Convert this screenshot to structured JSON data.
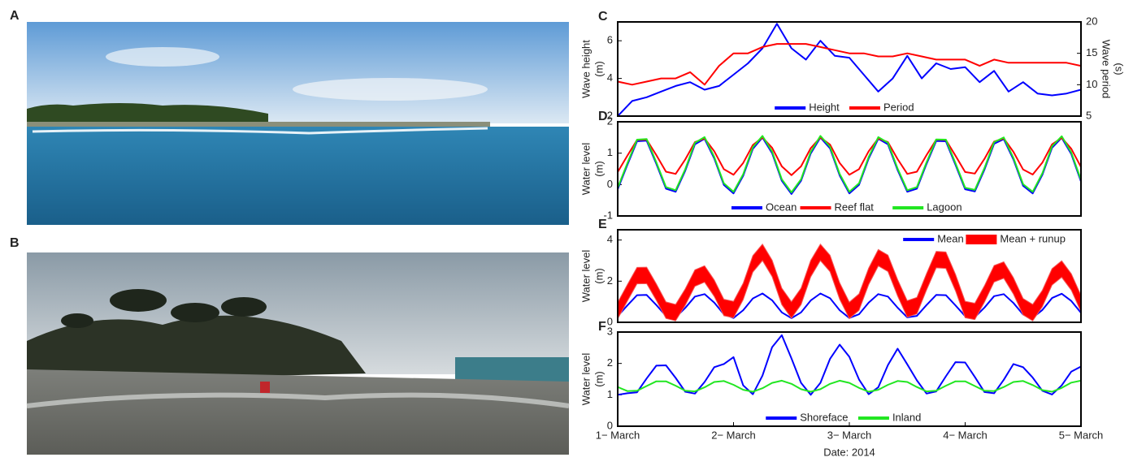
{
  "photos": [
    {
      "label": "A"
    },
    {
      "label": "B"
    }
  ],
  "chart_data": [
    {
      "type": "line",
      "label": "C",
      "ylabel": [
        "Wave height",
        "(m)"
      ],
      "y2label": [
        "Wave period",
        "(s)"
      ],
      "ylim": [
        2,
        7
      ],
      "yticks": [
        2,
        4,
        6
      ],
      "y2lim": [
        5,
        20
      ],
      "y2ticks": [
        5,
        10,
        15,
        20
      ],
      "xlim": [
        0,
        96
      ],
      "x": [
        0,
        3,
        6,
        9,
        12,
        15,
        18,
        21,
        24,
        27,
        30,
        33,
        36,
        39,
        42,
        45,
        48,
        51,
        54,
        57,
        60,
        63,
        66,
        69,
        72,
        75,
        78,
        81,
        84,
        87,
        90,
        93,
        96
      ],
      "legend": "lower center",
      "series": [
        {
          "name": "Height",
          "color": "#0000ff",
          "values": [
            2.0,
            2.8,
            3.0,
            3.3,
            3.6,
            3.8,
            3.4,
            3.6,
            4.2,
            4.8,
            5.6,
            6.9,
            5.6,
            5.0,
            6.0,
            5.2,
            5.1,
            4.2,
            3.3,
            4.0,
            5.2,
            4.0,
            4.8,
            4.5,
            4.6,
            3.8,
            4.4,
            3.3,
            3.8,
            3.2,
            3.1,
            3.2,
            3.4
          ]
        },
        {
          "name": "Period",
          "color": "#ff0000",
          "axis": "y2",
          "values": [
            10.5,
            10,
            10.5,
            11,
            11,
            12,
            10,
            13,
            15,
            15,
            16,
            16.5,
            16.5,
            16.5,
            16,
            15.5,
            15,
            15,
            14.5,
            14.5,
            15,
            14.5,
            14,
            14,
            14,
            13,
            14,
            13.5,
            13.5,
            13.5,
            13.5,
            13.5,
            13
          ]
        }
      ]
    },
    {
      "type": "line",
      "label": "D",
      "ylabel": [
        "Water level",
        "(m)"
      ],
      "ylim": [
        -1,
        2
      ],
      "yticks": [
        -1,
        0,
        1,
        2
      ],
      "xlim": [
        0,
        96
      ],
      "x": [
        0,
        2,
        4,
        6,
        8,
        10,
        12,
        14,
        16,
        18,
        20,
        22,
        24,
        26,
        28,
        30,
        32,
        34,
        36,
        38,
        40,
        42,
        44,
        46,
        48,
        50,
        52,
        54,
        56,
        58,
        60,
        62,
        64,
        66,
        68,
        70,
        72,
        74,
        76,
        78,
        80,
        82,
        84,
        86,
        88,
        90,
        92,
        94,
        96
      ],
      "legend": "lower center",
      "series": [
        {
          "name": "Ocean",
          "color": "#0000ff",
          "values": [
            -0.15,
            0.63,
            1.38,
            1.4,
            0.66,
            -0.13,
            -0.23,
            0.44,
            1.28,
            1.46,
            0.83,
            -0.01,
            -0.28,
            0.28,
            1.14,
            1.5,
            1.0,
            0.12,
            -0.3,
            0.12,
            0.99,
            1.5,
            1.15,
            0.29,
            -0.28,
            -0.01,
            0.83,
            1.46,
            1.28,
            0.46,
            -0.23,
            -0.13,
            0.66,
            1.39,
            1.38,
            0.63,
            -0.15,
            -0.22,
            0.48,
            1.3,
            1.45,
            0.8,
            -0.04,
            -0.28,
            0.31,
            1.17,
            1.49,
            0.97,
            0.1
          ]
        },
        {
          "name": "Reef flat",
          "color": "#ff0000",
          "values": [
            0.4,
            0.92,
            1.42,
            1.43,
            0.94,
            0.41,
            0.34,
            0.8,
            1.35,
            1.47,
            1.06,
            0.49,
            0.31,
            0.69,
            1.26,
            1.5,
            1.17,
            0.58,
            0.3,
            0.58,
            1.16,
            1.5,
            1.27,
            0.69,
            0.31,
            0.49,
            1.06,
            1.47,
            1.35,
            0.81,
            0.34,
            0.41,
            0.94,
            1.43,
            1.42,
            0.92,
            0.4,
            0.35,
            0.82,
            1.37,
            1.47,
            1.04,
            0.48,
            0.32,
            0.7,
            1.28,
            1.49,
            1.14,
            0.56
          ]
        },
        {
          "name": "Lagoon",
          "color": "#22e622",
          "values": [
            -0.1,
            0.68,
            1.43,
            1.45,
            0.71,
            -0.08,
            -0.18,
            0.49,
            1.33,
            1.51,
            0.88,
            0.04,
            -0.23,
            0.33,
            1.19,
            1.55,
            1.05,
            0.17,
            -0.25,
            0.17,
            1.04,
            1.55,
            1.2,
            0.34,
            -0.23,
            0.04,
            0.88,
            1.51,
            1.33,
            0.51,
            -0.18,
            -0.08,
            0.71,
            1.44,
            1.43,
            0.68,
            -0.1,
            -0.17,
            0.53,
            1.35,
            1.5,
            0.85,
            0.01,
            -0.23,
            0.36,
            1.22,
            1.54,
            1.02,
            0.15
          ]
        }
      ]
    },
    {
      "type": "line",
      "label": "E",
      "ylabel": [
        "Water level",
        "(m)"
      ],
      "ylim": [
        0,
        4.5
      ],
      "yticks": [
        0,
        2,
        4
      ],
      "xlim": [
        0,
        96
      ],
      "x": [
        0,
        2,
        4,
        6,
        8,
        10,
        12,
        14,
        16,
        18,
        20,
        22,
        24,
        26,
        28,
        30,
        32,
        34,
        36,
        38,
        40,
        42,
        44,
        46,
        48,
        50,
        52,
        54,
        56,
        58,
        60,
        62,
        64,
        66,
        68,
        70,
        72,
        74,
        76,
        78,
        80,
        82,
        84,
        86,
        88,
        90,
        92,
        94,
        96
      ],
      "legend": "upper right",
      "series": [
        {
          "name": "Mean",
          "color": "#0000ff",
          "values": [
            0.3,
            0.82,
            1.32,
            1.33,
            0.84,
            0.31,
            0.24,
            0.7,
            1.25,
            1.37,
            0.96,
            0.39,
            0.21,
            0.59,
            1.16,
            1.4,
            1.07,
            0.48,
            0.2,
            0.48,
            1.06,
            1.4,
            1.17,
            0.59,
            0.21,
            0.39,
            0.96,
            1.37,
            1.25,
            0.71,
            0.24,
            0.31,
            0.84,
            1.33,
            1.32,
            0.82,
            0.3,
            0.25,
            0.72,
            1.27,
            1.37,
            0.94,
            0.38,
            0.22,
            0.6,
            1.18,
            1.39,
            1.04,
            0.46
          ]
        },
        {
          "name": "Mean + runup",
          "color": "#ff0000",
          "band": true,
          "values": [
            0.97,
            1.83,
            2.67,
            2.68,
            1.87,
            0.99,
            0.87,
            1.63,
            2.55,
            2.75,
            2.06,
            1.12,
            1.02,
            1.9,
            3.24,
            3.8,
            3.02,
            1.66,
            1.0,
            1.66,
            3.01,
            3.8,
            3.26,
            1.92,
            0.98,
            1.38,
            2.63,
            3.54,
            3.27,
            2.08,
            1.05,
            1.21,
            2.37,
            3.45,
            3.42,
            2.33,
            1.02,
            0.93,
            1.78,
            2.76,
            2.94,
            2.17,
            1.16,
            0.87,
            1.56,
            2.61,
            2.99,
            2.36,
            1.31
          ],
          "lower": [
            0.17,
            1.03,
            1.87,
            1.88,
            1.07,
            0.19,
            0.07,
            0.83,
            1.75,
            1.95,
            1.26,
            0.32,
            0.22,
            1.1,
            2.44,
            3.0,
            2.22,
            0.86,
            0.2,
            0.86,
            2.21,
            3.0,
            2.46,
            1.12,
            0.18,
            0.58,
            1.83,
            2.74,
            2.47,
            1.28,
            0.25,
            0.41,
            1.57,
            2.65,
            2.62,
            1.53,
            0.22,
            0.13,
            0.98,
            1.96,
            2.14,
            1.37,
            0.36,
            0.07,
            0.76,
            1.81,
            2.19,
            1.56,
            0.51
          ]
        }
      ]
    },
    {
      "type": "line",
      "label": "F",
      "ylabel": [
        "Water level",
        "(m)"
      ],
      "xlabel": "Date: 2014",
      "ylim": [
        0,
        3
      ],
      "yticks": [
        0,
        1,
        2,
        3
      ],
      "xlim": [
        0,
        96
      ],
      "xticks": [
        {
          "value": 0,
          "label": "1− March"
        },
        {
          "value": 24,
          "label": "2− March"
        },
        {
          "value": 48,
          "label": "3− March"
        },
        {
          "value": 72,
          "label": "4− March"
        },
        {
          "value": 96,
          "label": "5− March"
        }
      ],
      "x": [
        0,
        2,
        4,
        6,
        8,
        10,
        12,
        14,
        16,
        18,
        20,
        22,
        24,
        26,
        28,
        30,
        32,
        34,
        36,
        38,
        40,
        42,
        44,
        46,
        48,
        50,
        52,
        54,
        56,
        58,
        60,
        62,
        64,
        66,
        68,
        70,
        72,
        74,
        76,
        78,
        80,
        82,
        84,
        86,
        88,
        90,
        92,
        94,
        96
      ],
      "legend": "lower center",
      "series": [
        {
          "name": "Shoreface",
          "color": "#0000ff",
          "values": [
            1.0,
            1.05,
            1.08,
            1.52,
            1.93,
            1.94,
            1.54,
            1.1,
            1.04,
            1.41,
            1.88,
            1.98,
            2.2,
            1.3,
            1.02,
            1.61,
            2.52,
            2.9,
            2.16,
            1.38,
            1.0,
            1.38,
            2.15,
            2.6,
            2.21,
            1.49,
            1.02,
            1.24,
            1.95,
            2.47,
            1.97,
            1.46,
            1.04,
            1.11,
            1.59,
            2.04,
            2.03,
            1.57,
            1.09,
            1.05,
            1.48,
            1.98,
            1.88,
            1.55,
            1.13,
            1.01,
            1.3,
            1.74,
            1.9
          ]
        },
        {
          "name": "Inland",
          "color": "#22e622",
          "values": [
            1.25,
            1.12,
            1.13,
            1.28,
            1.43,
            1.43,
            1.29,
            1.13,
            1.11,
            1.24,
            1.41,
            1.44,
            1.32,
            1.16,
            1.1,
            1.21,
            1.38,
            1.45,
            1.35,
            1.18,
            1.1,
            1.18,
            1.35,
            1.45,
            1.38,
            1.22,
            1.1,
            1.16,
            1.32,
            1.44,
            1.41,
            1.25,
            1.11,
            1.13,
            1.29,
            1.43,
            1.43,
            1.28,
            1.13,
            1.12,
            1.25,
            1.41,
            1.44,
            1.31,
            1.15,
            1.1,
            1.22,
            1.39,
            1.45
          ]
        }
      ]
    }
  ]
}
